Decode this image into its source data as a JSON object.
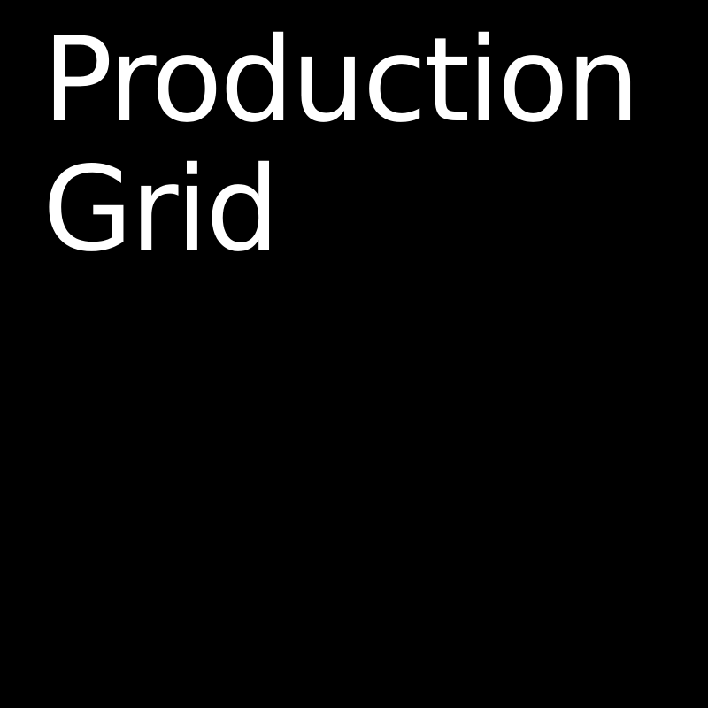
{
  "tile": {
    "title_lines": [
      "Production",
      "Grid"
    ]
  },
  "colors": {
    "background": "#000000",
    "text": "#ffffff"
  }
}
